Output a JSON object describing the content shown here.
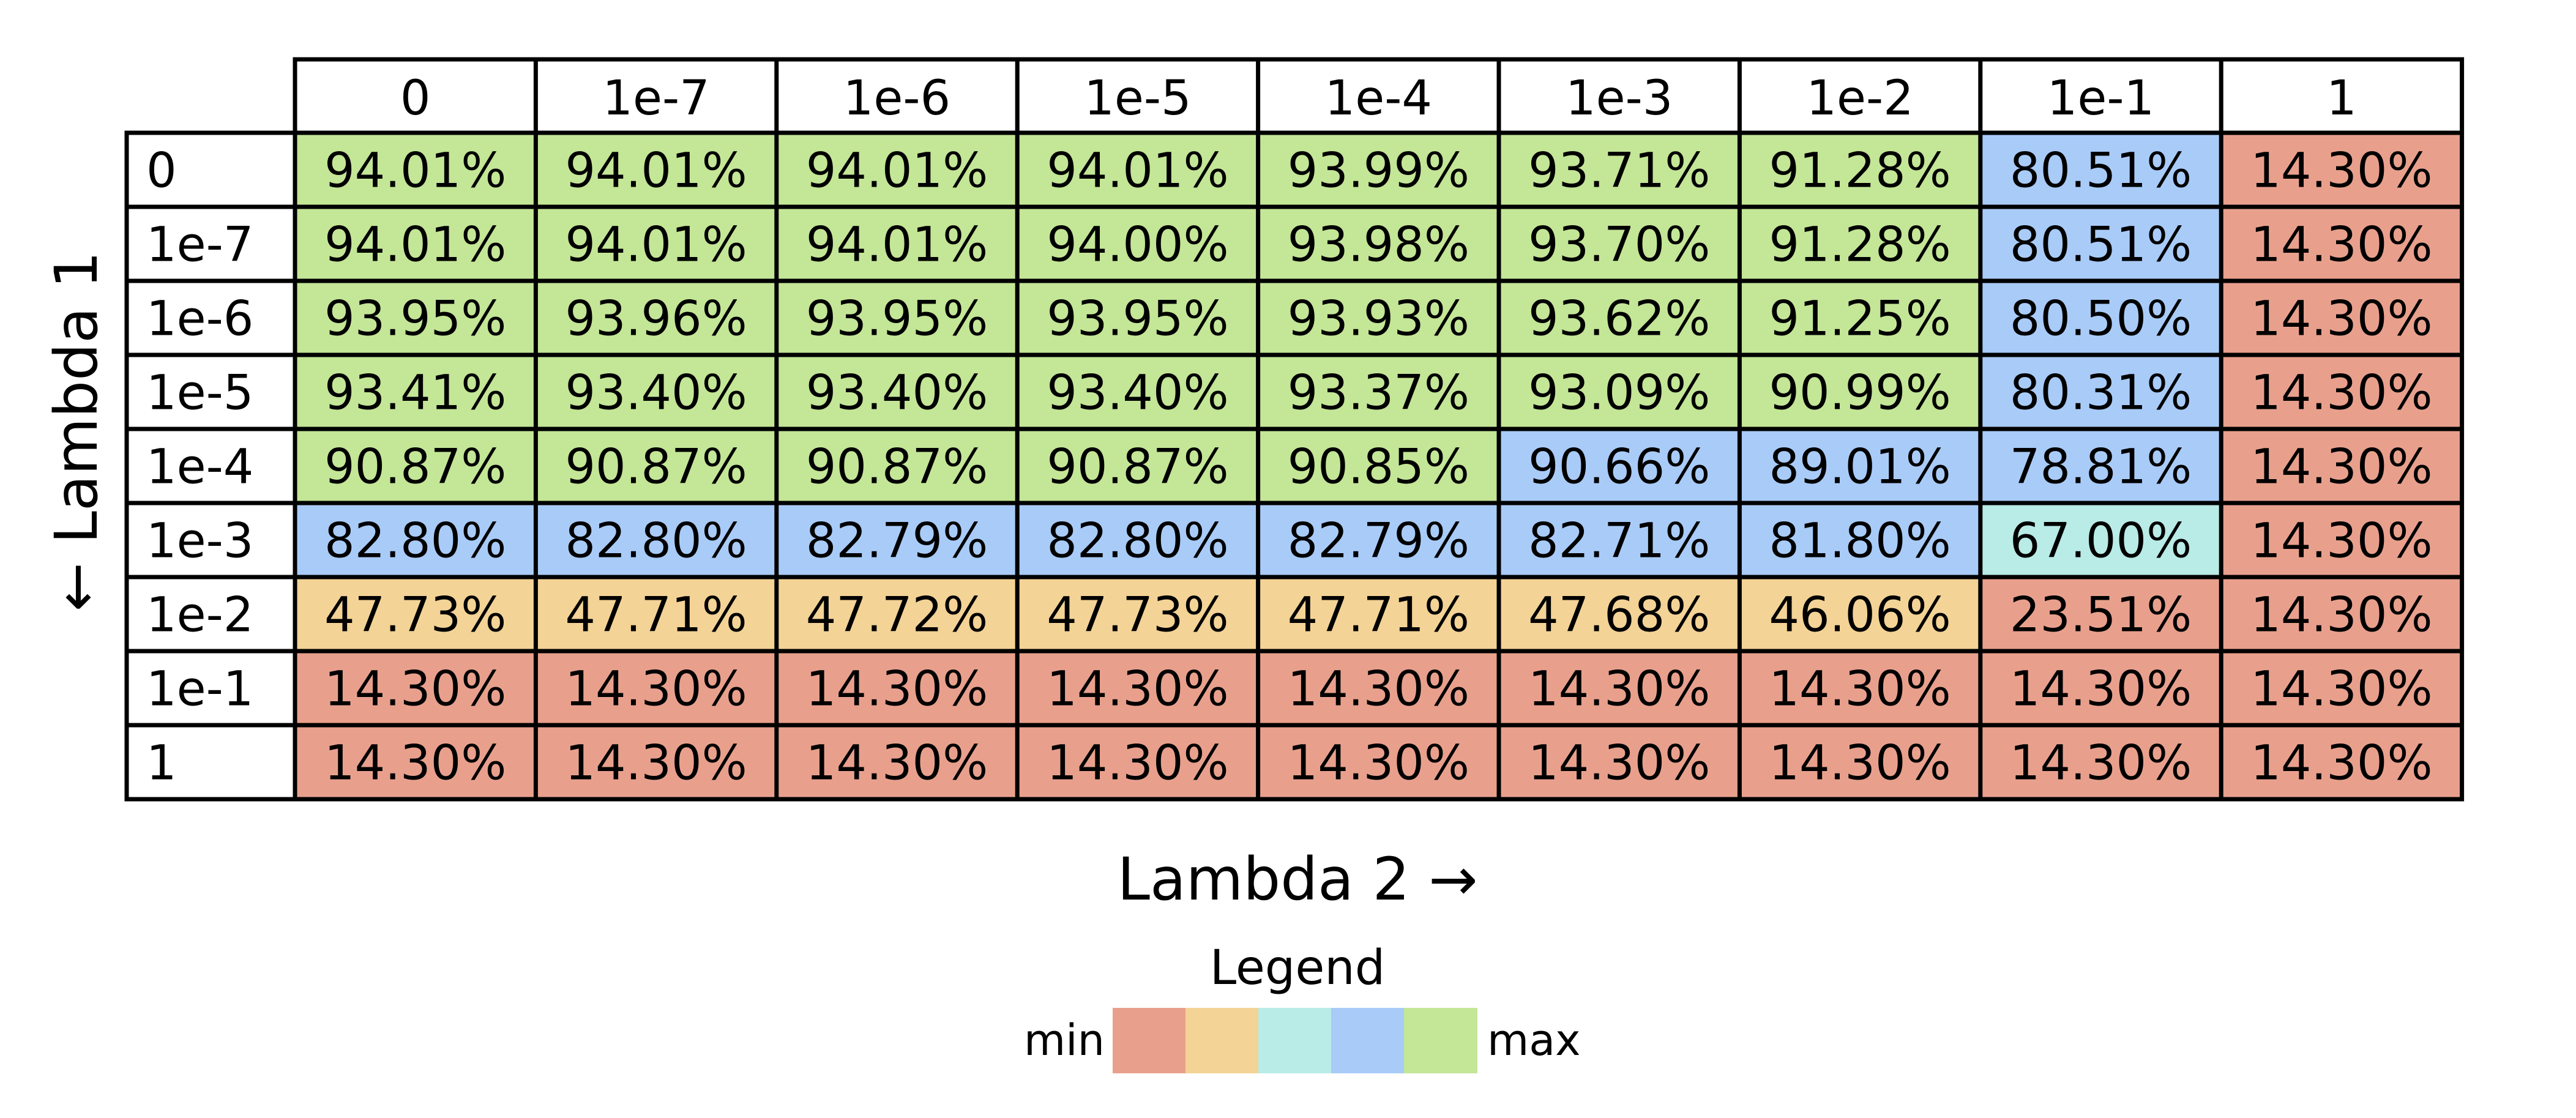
{
  "chart_data": {
    "type": "heatmap",
    "title": "",
    "xlabel": "Lambda 2 →",
    "ylabel": "← Lambda 1",
    "x": [
      "0",
      "1e-7",
      "1e-6",
      "1e-5",
      "1e-4",
      "1e-3",
      "1e-2",
      "1e-1",
      "1"
    ],
    "y": [
      "0",
      "1e-7",
      "1e-6",
      "1e-5",
      "1e-4",
      "1e-3",
      "1e-2",
      "1e-1",
      "1"
    ],
    "values": [
      [
        94.01,
        94.01,
        94.01,
        94.01,
        93.99,
        93.71,
        91.28,
        80.51,
        14.3
      ],
      [
        94.01,
        94.01,
        94.01,
        94.0,
        93.98,
        93.7,
        91.28,
        80.51,
        14.3
      ],
      [
        93.95,
        93.96,
        93.95,
        93.95,
        93.93,
        93.62,
        91.25,
        80.5,
        14.3
      ],
      [
        93.41,
        93.4,
        93.4,
        93.4,
        93.37,
        93.09,
        90.99,
        80.31,
        14.3
      ],
      [
        90.87,
        90.87,
        90.87,
        90.87,
        90.85,
        90.66,
        89.01,
        78.81,
        14.3
      ],
      [
        82.8,
        82.8,
        82.79,
        82.8,
        82.79,
        82.71,
        81.8,
        67.0,
        14.3
      ],
      [
        47.73,
        47.71,
        47.72,
        47.73,
        47.71,
        47.68,
        46.06,
        23.51,
        14.3
      ],
      [
        14.3,
        14.3,
        14.3,
        14.3,
        14.3,
        14.3,
        14.3,
        14.3,
        14.3
      ],
      [
        14.3,
        14.3,
        14.3,
        14.3,
        14.3,
        14.3,
        14.3,
        14.3,
        14.3
      ]
    ],
    "labels": [
      [
        "94.01%",
        "94.01%",
        "94.01%",
        "94.01%",
        "93.99%",
        "93.71%",
        "91.28%",
        "80.51%",
        "14.30%"
      ],
      [
        "94.01%",
        "94.01%",
        "94.01%",
        "94.00%",
        "93.98%",
        "93.70%",
        "91.28%",
        "80.51%",
        "14.30%"
      ],
      [
        "93.95%",
        "93.96%",
        "93.95%",
        "93.95%",
        "93.93%",
        "93.62%",
        "91.25%",
        "80.50%",
        "14.30%"
      ],
      [
        "93.41%",
        "93.40%",
        "93.40%",
        "93.40%",
        "93.37%",
        "93.09%",
        "90.99%",
        "80.31%",
        "14.30%"
      ],
      [
        "90.87%",
        "90.87%",
        "90.87%",
        "90.87%",
        "90.85%",
        "90.66%",
        "89.01%",
        "78.81%",
        "14.30%"
      ],
      [
        "82.80%",
        "82.80%",
        "82.79%",
        "82.80%",
        "82.79%",
        "82.71%",
        "81.80%",
        "67.00%",
        "14.30%"
      ],
      [
        "47.73%",
        "47.71%",
        "47.72%",
        "47.73%",
        "47.71%",
        "47.68%",
        "46.06%",
        "23.51%",
        "14.30%"
      ],
      [
        "14.30%",
        "14.30%",
        "14.30%",
        "14.30%",
        "14.30%",
        "14.30%",
        "14.30%",
        "14.30%",
        "14.30%"
      ],
      [
        "14.30%",
        "14.30%",
        "14.30%",
        "14.30%",
        "14.30%",
        "14.30%",
        "14.30%",
        "14.30%",
        "14.30%"
      ]
    ],
    "color_classes": [
      [
        4,
        4,
        4,
        4,
        4,
        4,
        4,
        3,
        0
      ],
      [
        4,
        4,
        4,
        4,
        4,
        4,
        4,
        3,
        0
      ],
      [
        4,
        4,
        4,
        4,
        4,
        4,
        4,
        3,
        0
      ],
      [
        4,
        4,
        4,
        4,
        4,
        4,
        4,
        3,
        0
      ],
      [
        4,
        4,
        4,
        4,
        4,
        3,
        3,
        3,
        0
      ],
      [
        3,
        3,
        3,
        3,
        3,
        3,
        3,
        2,
        0
      ],
      [
        1,
        1,
        1,
        1,
        1,
        1,
        1,
        0,
        0
      ],
      [
        0,
        0,
        0,
        0,
        0,
        0,
        0,
        0,
        0
      ],
      [
        0,
        0,
        0,
        0,
        0,
        0,
        0,
        0,
        0
      ]
    ],
    "legend": {
      "title": "Legend",
      "min_label": "min",
      "max_label": "max",
      "colors": [
        "#e8a08d",
        "#f3d396",
        "#b9ebe7",
        "#a9cbf8",
        "#c4e697"
      ]
    },
    "grid": true,
    "legend_position": "bottom-center"
  }
}
